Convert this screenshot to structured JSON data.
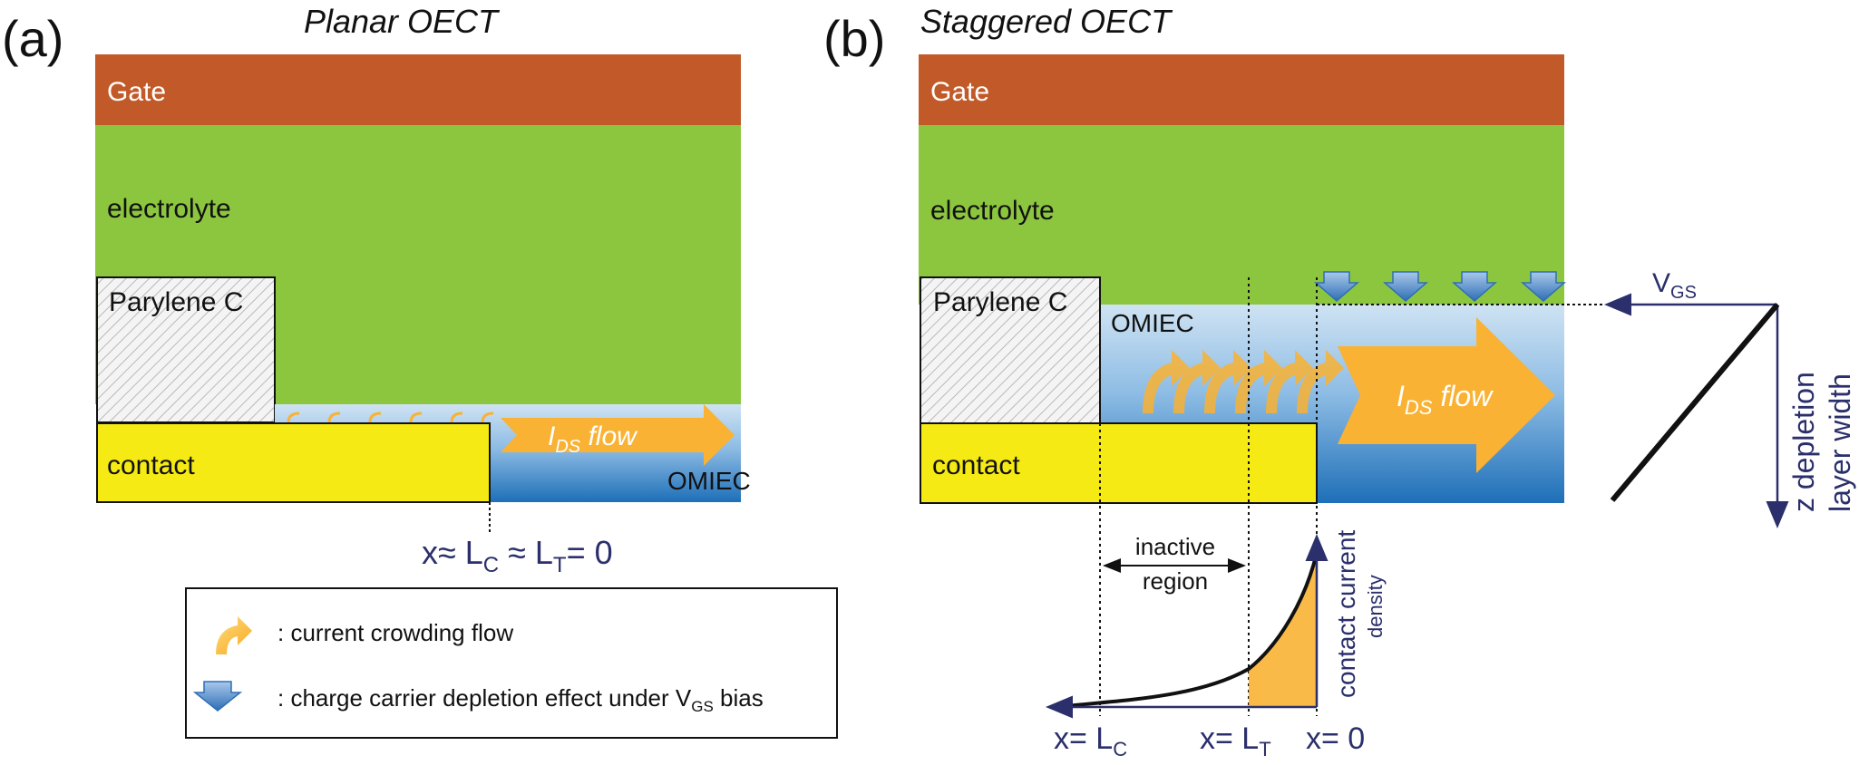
{
  "panel_a": {
    "letter": "(a)",
    "title": "Planar OECT",
    "gate": "Gate",
    "electrolyte": "electrolyte",
    "parylene": "Parylene C",
    "contact": "contact",
    "omiec": "OMIEC",
    "ids_main": "I",
    "ids_sub": "DS",
    "ids_rest": " flow",
    "position_pre": "x≈ L",
    "position_sub1": "C",
    "position_mid": " ≈ L",
    "position_sub2": "T",
    "position_post": "= 0"
  },
  "panel_b": {
    "letter": "(b)",
    "title": "Staggered OECT",
    "gate": "Gate",
    "electrolyte": "electrolyte",
    "parylene": "Parylene C",
    "contact": "contact",
    "omiec": "OMIEC",
    "ids_main": "I",
    "ids_sub": "DS",
    "ids_rest": " flow",
    "vgs_main": "V",
    "vgs_sub": "GS",
    "depletion_line1": "z depletion",
    "depletion_line2": "layer width",
    "inactive_line1": "inactive",
    "inactive_line2": "region",
    "density_line1": "contact current",
    "density_line2": "density",
    "x_lc_pre": "x= L",
    "x_lc_sub": "C",
    "x_lt_pre": "x= L",
    "x_lt_sub": "T",
    "x_zero": "x= 0"
  },
  "legend": {
    "crowding": ": current crowding flow",
    "depletion_pre": ": charge carrier depletion effect under V",
    "depletion_sub": "GS",
    "depletion_post": " bias"
  },
  "colors": {
    "gate": "#C15A28",
    "electrolyte": "#8CC63F",
    "contact": "#F5EA14",
    "omiec_top": "#C9DFF1",
    "omiec_bottom": "#1E6FB8",
    "arrow": "#F9B233",
    "label_blue": "#2B2F6B",
    "depletion_arrow": "#5B8FC9"
  },
  "icons": [
    "curved-arrow-icon",
    "down-arrow-icon"
  ]
}
